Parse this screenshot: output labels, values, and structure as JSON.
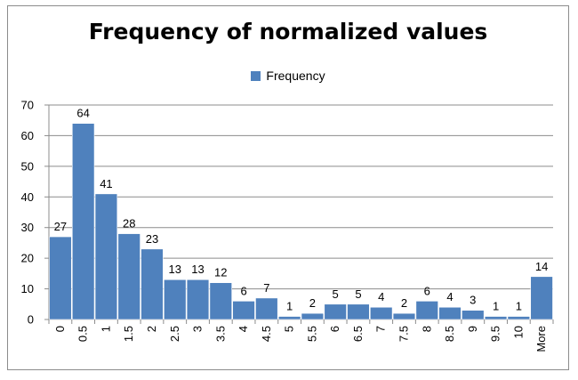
{
  "chart_data": {
    "type": "bar",
    "title": "Frequency of normalized values",
    "xlabel": "",
    "ylabel": "",
    "ylim": [
      0,
      70
    ],
    "yticks": [
      0,
      10,
      20,
      30,
      40,
      50,
      60,
      70
    ],
    "grid": true,
    "legend_position": "top-center",
    "categories": [
      "0",
      "0.5",
      "1",
      "1.5",
      "2",
      "2.5",
      "3",
      "3.5",
      "4",
      "4.5",
      "5",
      "5.5",
      "6",
      "6.5",
      "7",
      "7.5",
      "8",
      "8.5",
      "9",
      "9.5",
      "10",
      "More"
    ],
    "series": [
      {
        "name": "Frequency",
        "color": "#4f81bd",
        "values": [
          27,
          64,
          41,
          28,
          23,
          13,
          13,
          12,
          6,
          7,
          1,
          2,
          5,
          5,
          4,
          2,
          6,
          4,
          3,
          1,
          1,
          14
        ]
      }
    ]
  }
}
